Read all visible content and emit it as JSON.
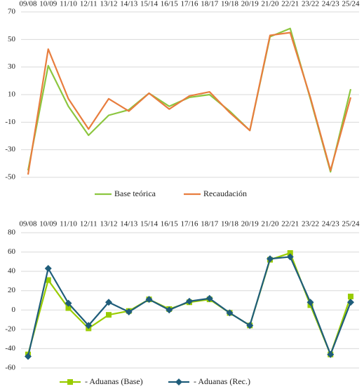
{
  "chart_data": [
    {
      "type": "line",
      "categories": [
        "09/08",
        "10/09",
        "11/10",
        "12/11",
        "13/12",
        "14/13",
        "15/14",
        "16/15",
        "17/16",
        "18/17",
        "19/18",
        "20/19",
        "21/20",
        "22/21",
        "23/22",
        "24/23",
        "25/24"
      ],
      "series": [
        {
          "name": "Base teórica",
          "color": "#8cc63f",
          "values": [
            -45,
            31,
            1.5,
            -19.5,
            -5,
            -1,
            11,
            1.5,
            8,
            10,
            -2,
            -16,
            52,
            58,
            7,
            -46,
            14
          ]
        },
        {
          "name": "Recaudación",
          "color": "#e87d3e",
          "values": [
            -48,
            43,
            7,
            -15,
            7,
            -2,
            11,
            -0.5,
            9,
            12,
            -3,
            -16,
            53,
            55,
            8,
            -45,
            8
          ]
        }
      ],
      "ylim": [
        -50,
        70
      ],
      "yticks": [
        -50,
        -30,
        -10,
        10,
        30,
        50,
        70
      ],
      "grid": true
    },
    {
      "type": "line",
      "categories": [
        "09/08",
        "10/09",
        "11/10",
        "12/11",
        "13/12",
        "14/13",
        "15/14",
        "16/15",
        "17/16",
        "18/17",
        "19/18",
        "20/19",
        "21/20",
        "22/21",
        "23/22",
        "24/23",
        "25/24"
      ],
      "series": [
        {
          "name": "- Aduanas (Base)",
          "color": "#99cc00",
          "marker": "square",
          "values": [
            -46,
            31,
            2,
            -19,
            -5,
            -1,
            11,
            1,
            8,
            11,
            -3,
            -16,
            52,
            59,
            5,
            -46,
            14
          ]
        },
        {
          "name": "- Aduanas (Rec.)",
          "color": "#1f5d7a",
          "marker": "diamond",
          "values": [
            -48,
            43,
            7,
            -16,
            8,
            -2,
            11,
            0,
            9,
            12,
            -3,
            -16,
            53,
            55,
            8,
            -46,
            8
          ]
        }
      ],
      "ylim": [
        -60,
        80
      ],
      "yticks": [
        -60,
        -40,
        -20,
        0,
        20,
        40,
        60,
        80
      ],
      "grid": true
    }
  ]
}
